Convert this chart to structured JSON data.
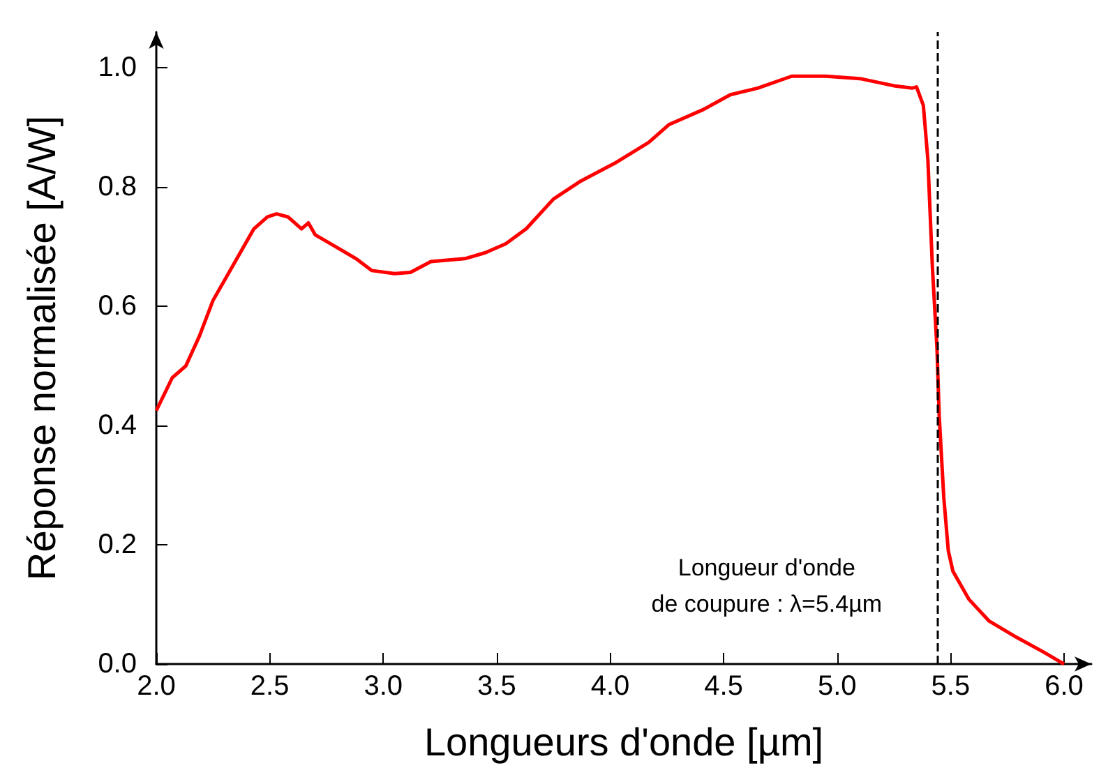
{
  "chart_data": {
    "type": "line",
    "xlabel": "Longueurs d'onde [µm]",
    "ylabel": "Réponse normalisée [A/W]",
    "xlim": [
      2.0,
      6.12
    ],
    "xticks": [
      {
        "value": 2,
        "label": "2.0"
      },
      {
        "value": 2.5,
        "label": "2.5"
      },
      {
        "value": 3,
        "label": "3.0"
      },
      {
        "value": 3.5,
        "label": "3.5"
      },
      {
        "value": 4,
        "label": "4.0"
      },
      {
        "value": 4.5,
        "label": "4.5"
      },
      {
        "value": 5,
        "label": "5.0"
      },
      {
        "value": 5.5,
        "label": "5.5"
      },
      {
        "value": 6,
        "label": "6.0"
      }
    ],
    "ylim": [
      0,
      1.06
    ],
    "yticks": [
      {
        "value": 0,
        "label": "0.0"
      },
      {
        "value": 0.2,
        "label": "0.2"
      },
      {
        "value": 0.4,
        "label": "0.4"
      },
      {
        "value": 0.6,
        "label": "0.6"
      },
      {
        "value": 0.8,
        "label": "0.8"
      },
      {
        "value": 1,
        "label": "1.0"
      }
    ],
    "grid": false,
    "marker": "none",
    "line_style": "solid",
    "series": [
      {
        "color": "#ff0000",
        "x": [
          2.0,
          2.07,
          2.13,
          2.19,
          2.25,
          2.31,
          2.37,
          2.43,
          2.49,
          2.53,
          2.58,
          2.64,
          2.67,
          2.7,
          2.79,
          2.88,
          2.95,
          3.05,
          3.12,
          3.21,
          3.36,
          3.45,
          3.54,
          3.63,
          3.75,
          3.87,
          4.02,
          4.17,
          4.26,
          4.41,
          4.53,
          4.65,
          4.8,
          4.95,
          5.1,
          5.25,
          5.33,
          5.35,
          5.38,
          5.4,
          5.42,
          5.44,
          5.45,
          5.47,
          5.49,
          5.51,
          5.58,
          5.67,
          5.79,
          5.91,
          6.0
        ],
        "values": [
          0.425,
          0.48,
          0.5,
          0.55,
          0.61,
          0.65,
          0.69,
          0.73,
          0.75,
          0.755,
          0.75,
          0.73,
          0.74,
          0.72,
          0.7,
          0.68,
          0.66,
          0.655,
          0.657,
          0.675,
          0.68,
          0.69,
          0.705,
          0.73,
          0.78,
          0.81,
          0.84,
          0.875,
          0.905,
          0.93,
          0.955,
          0.966,
          0.986,
          0.986,
          0.982,
          0.97,
          0.966,
          0.968,
          0.937,
          0.846,
          0.665,
          0.53,
          0.416,
          0.28,
          0.19,
          0.156,
          0.109,
          0.072,
          0.045,
          0.02,
          0.0
        ]
      }
    ],
    "ref_lines": [
      {
        "axis": "x",
        "value": 5.44,
        "label": "Longueur d'onde\nde coupure : λ=5.4µm",
        "color": "#000000",
        "line_style": "dashed"
      }
    ]
  }
}
